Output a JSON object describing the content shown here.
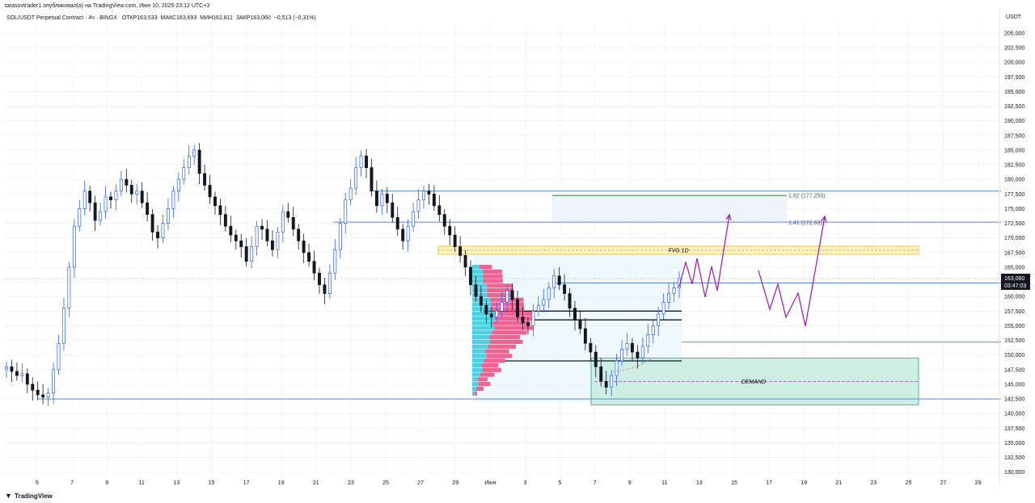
{
  "header": {
    "published": "tarasovtrader1 опубликовал(а) на TradingView.com, Июн 10, 2025 23:12 UTC+3",
    "symbol": "SOL/USDT Perpetual Contract · 4ч · BINGX",
    "open": "ОТКР163,533",
    "high": "МАКС163,693",
    "low": "МИН162,811",
    "close": "ЗАКР163,060",
    "change": "−0,513 (−0,31%)"
  },
  "currency": "USDT",
  "logo_text": "TradingView",
  "price_tag": {
    "price": "163,060",
    "timer": "03:47:03"
  },
  "colors": {
    "up": "#2962ff",
    "down": "#131722",
    "fvg": "#ffe9a8",
    "demand": "#cdeee2",
    "fib": "#e8f0fd",
    "arrow": "#9c27b0",
    "profile_pink": "#f06292",
    "profile_cyan": "#4dd0e1"
  },
  "chart_data": {
    "type": "candlestick",
    "title": "SOL/USDT Perpetual Contract · 4ч · BINGX",
    "ylim": [
      129000,
      206500
    ],
    "y_ticks": [
      "205,000",
      "202,500",
      "200,000",
      "197,500",
      "195,000",
      "192,500",
      "190,000",
      "187,500",
      "185,000",
      "182,500",
      "180,000",
      "177,500",
      "175,000",
      "172,500",
      "170,000",
      "167,500",
      "165,000",
      "162,500",
      "160,000",
      "157,500",
      "155,000",
      "152,500",
      "150,000",
      "147,500",
      "145,000",
      "142,500",
      "140,000",
      "137,500",
      "135,000",
      "132,500",
      "130,000"
    ],
    "y_tick_values": [
      205000,
      202500,
      200000,
      197500,
      195000,
      192500,
      190000,
      187500,
      185000,
      182500,
      180000,
      177500,
      175000,
      172500,
      170000,
      167500,
      165000,
      162500,
      160000,
      157500,
      155000,
      152500,
      150000,
      147500,
      145000,
      142500,
      140000,
      137500,
      135000,
      132500,
      130000
    ],
    "x_ticks": [
      "5",
      "7",
      "9",
      "11",
      "13",
      "15",
      "17",
      "19",
      "21",
      "23",
      "25",
      "27",
      "29",
      "Июн",
      "3",
      "5",
      "7",
      "9",
      "11",
      "13",
      "15",
      "17",
      "19",
      "21",
      "23",
      "25",
      "27",
      "29"
    ],
    "closes": [
      148000,
      147200,
      146500,
      146800,
      145000,
      144000,
      143200,
      142800,
      143500,
      147500,
      152000,
      158000,
      165000,
      172000,
      175000,
      178000,
      176000,
      173000,
      174500,
      177000,
      176500,
      178000,
      180000,
      179000,
      177500,
      178000,
      176000,
      174000,
      171000,
      170000,
      172500,
      175000,
      178000,
      180000,
      182000,
      184000,
      185000,
      181000,
      179000,
      177000,
      175500,
      174000,
      172000,
      170500,
      169500,
      168500,
      166000,
      168500,
      172000,
      171500,
      169500,
      168000,
      171000,
      174500,
      173500,
      171500,
      169500,
      167500,
      166000,
      164000,
      162000,
      160500,
      164000,
      168000,
      172500,
      176500,
      178500,
      182000,
      184000,
      182000,
      178000,
      175500,
      177500,
      176000,
      173500,
      171500,
      169500,
      172000,
      174500,
      176500,
      178000,
      177500,
      175500,
      174000,
      172000,
      170500,
      168500,
      167000,
      165000,
      162000,
      160000,
      158500,
      157000,
      156500,
      157500,
      159000,
      161000,
      159500,
      156500,
      155500,
      155000,
      157500,
      158500,
      159500,
      161500,
      163500,
      162000,
      160500,
      158000,
      156000,
      154500,
      152000,
      150500,
      148000,
      145500,
      144500,
      146500,
      149000,
      151000,
      152000,
      150500,
      149500,
      151500,
      153500,
      155000,
      157000,
      159000,
      160500,
      161500,
      163060
    ],
    "series_labels": [
      "SOL/USDT 4h"
    ],
    "levels": [
      {
        "label": "1,62 (177,255)",
        "value": 177255
      },
      {
        "label": "1,41 (172,63)",
        "value": 172630
      }
    ],
    "zones": [
      {
        "label": "FVG 1D",
        "low": 167200,
        "high": 168600
      },
      {
        "label": "DEMAND",
        "low": 141500,
        "high": 149500
      }
    ],
    "horizontal_lines": [
      178000,
      172700,
      162300,
      157500,
      156000,
      152200,
      149000,
      142500
    ],
    "current_price": 163060
  }
}
